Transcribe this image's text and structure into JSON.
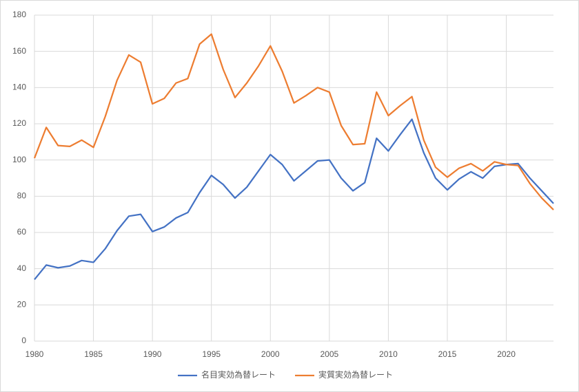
{
  "chart_data": {
    "type": "line",
    "x": [
      1980,
      1981,
      1982,
      1983,
      1984,
      1985,
      1986,
      1987,
      1988,
      1989,
      1990,
      1991,
      1992,
      1993,
      1994,
      1995,
      1996,
      1997,
      1998,
      1999,
      2000,
      2001,
      2002,
      2003,
      2004,
      2005,
      2006,
      2007,
      2008,
      2009,
      2010,
      2011,
      2012,
      2013,
      2014,
      2015,
      2016,
      2017,
      2018,
      2019,
      2020,
      2021,
      2022,
      2023,
      2024
    ],
    "series": [
      {
        "name": "名目実効為替レート",
        "color": "#4472c4",
        "values": [
          34,
          42,
          40.5,
          41.5,
          44.5,
          43.5,
          51,
          61,
          69,
          70,
          60.5,
          63,
          68,
          71,
          82,
          91.5,
          86.5,
          79,
          85,
          94,
          103,
          97.5,
          88.5,
          94,
          99.5,
          100,
          90,
          83,
          87.5,
          112,
          105,
          114,
          122.5,
          104,
          90,
          83.5,
          89.5,
          93.5,
          90,
          96.5,
          97.5,
          98,
          90,
          83,
          76
        ]
      },
      {
        "name": "実質実効為替レート",
        "color": "#ed7d31",
        "values": [
          101,
          118,
          108,
          107.5,
          111,
          107,
          124,
          144,
          158,
          154,
          131,
          134,
          142.5,
          145,
          164,
          169.5,
          150,
          134.5,
          142.5,
          152,
          163,
          149,
          131.5,
          135.5,
          140,
          137.5,
          119,
          108.5,
          109,
          137.5,
          124.5,
          130,
          135,
          111,
          96,
          90.5,
          95.5,
          98,
          94,
          99,
          97.5,
          97,
          87,
          79,
          72.5
        ]
      }
    ],
    "xlim": [
      1980,
      2024
    ],
    "xticks": [
      1980,
      1985,
      1990,
      1995,
      2000,
      2005,
      2010,
      2015,
      2020
    ],
    "ylim": [
      0,
      180
    ],
    "yticks": [
      0,
      20,
      40,
      60,
      80,
      100,
      120,
      140,
      160,
      180
    ],
    "grid": true,
    "legend": "bottom"
  }
}
